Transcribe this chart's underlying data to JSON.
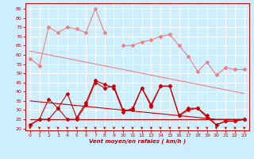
{
  "x": [
    0,
    1,
    2,
    3,
    4,
    5,
    6,
    7,
    8,
    9,
    10,
    11,
    12,
    13,
    14,
    15,
    16,
    17,
    18,
    19,
    20,
    21,
    22,
    23
  ],
  "rafales": [
    58,
    54,
    75,
    72,
    75,
    74,
    72,
    85,
    72,
    null,
    65,
    65,
    67,
    68,
    70,
    71,
    65,
    59,
    51,
    56,
    49,
    53,
    52,
    52
  ],
  "trend_high": [
    62,
    61,
    60,
    59,
    58,
    57,
    56,
    55,
    54,
    53,
    52,
    51,
    50,
    49,
    48,
    47,
    46,
    45,
    44,
    43,
    42,
    41,
    40,
    39
  ],
  "wind_avg": [
    22,
    25,
    25,
    31,
    25,
    25,
    33,
    45,
    42,
    43,
    30,
    30,
    42,
    33,
    43,
    43,
    27,
    31,
    31,
    27,
    22,
    24,
    24,
    25
  ],
  "wind_avg2": [
    22,
    25,
    36,
    31,
    39,
    26,
    34,
    46,
    44,
    42,
    29,
    31,
    42,
    32,
    43,
    43,
    27,
    30,
    31,
    26,
    22,
    24,
    24,
    25
  ],
  "trend_low1": [
    35,
    34.5,
    34,
    33.5,
    33,
    32.5,
    32,
    31.5,
    31,
    30.5,
    30,
    29.5,
    29,
    28.5,
    28,
    27.5,
    27,
    26.5,
    26,
    25.5,
    25,
    25,
    25,
    25
  ],
  "trend_low2": [
    25,
    25,
    25,
    25,
    25,
    25,
    25,
    25,
    25,
    25,
    25,
    25,
    25,
    25,
    25,
    25,
    25,
    25,
    25,
    25,
    25,
    25,
    25,
    25
  ],
  "bg_color": "#cceeff",
  "grid_color": "#aaddcc",
  "line_color_light": "#f08080",
  "line_color_dark": "#cc0000",
  "xlabel": "Vent moyen/en rafales ( km/h )",
  "yticks": [
    20,
    25,
    30,
    35,
    40,
    45,
    50,
    55,
    60,
    65,
    70,
    75,
    80,
    85
  ],
  "xticks": [
    0,
    1,
    2,
    3,
    4,
    5,
    6,
    7,
    8,
    9,
    10,
    11,
    12,
    13,
    14,
    15,
    16,
    17,
    18,
    19,
    20,
    21,
    22,
    23
  ],
  "ylim": [
    19,
    88
  ],
  "xlim": [
    -0.5,
    23.5
  ]
}
